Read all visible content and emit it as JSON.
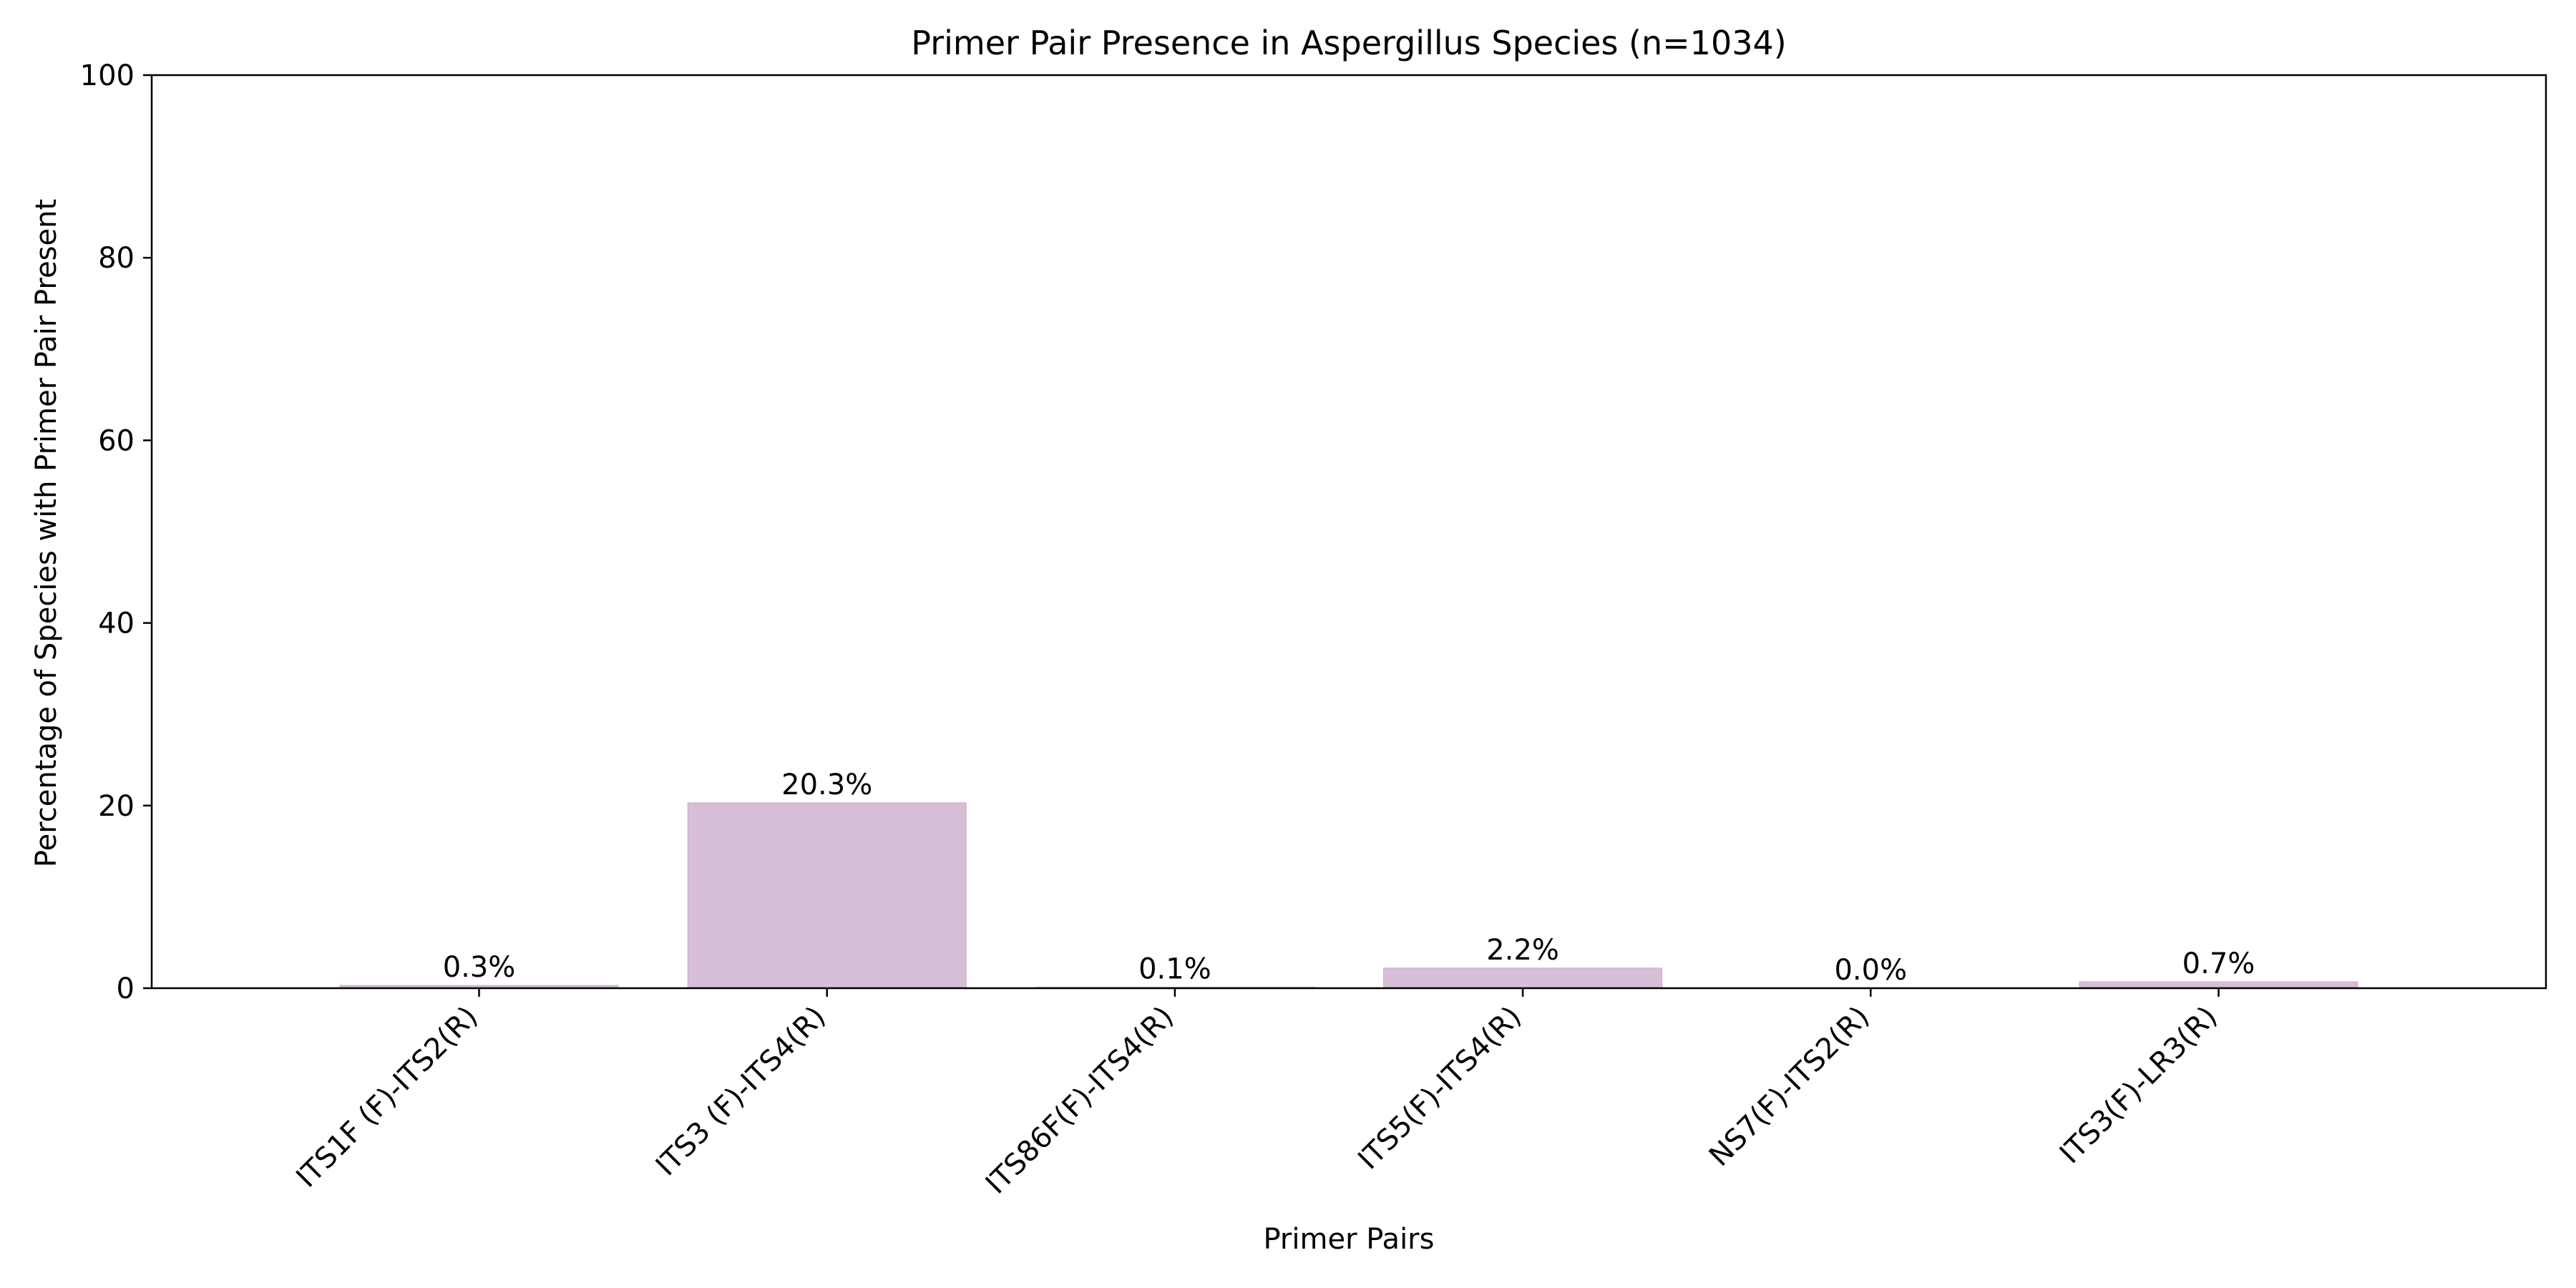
{
  "chart_data": {
    "type": "bar",
    "title": "Primer Pair Presence in Aspergillus Species (n=1034)",
    "xlabel": "Primer Pairs",
    "ylabel": "Percentage of Species with Primer Pair Present",
    "categories": [
      "ITS1F (F)-ITS2(R)",
      "ITS3 (F)-ITS4(R)",
      "ITS86F(F)-ITS4(R)",
      "ITS5(F)-ITS4(R)",
      "NS7(F)-ITS2(R)",
      "ITS3(F)-LR3(R)"
    ],
    "values": [
      0.3,
      20.3,
      0.1,
      2.2,
      0.0,
      0.7
    ],
    "data_labels": [
      "0.3%",
      "20.3%",
      "0.1%",
      "2.2%",
      "0.0%",
      "0.7%"
    ],
    "ylim": [
      0,
      100
    ],
    "yticks": [
      0,
      20,
      40,
      60,
      80,
      100
    ],
    "ytick_labels": [
      "0",
      "20",
      "40",
      "60",
      "80",
      "100"
    ],
    "grid": false,
    "bar_color": "#d8bfd8",
    "bar_edge_color": "#c8a8c8"
  }
}
